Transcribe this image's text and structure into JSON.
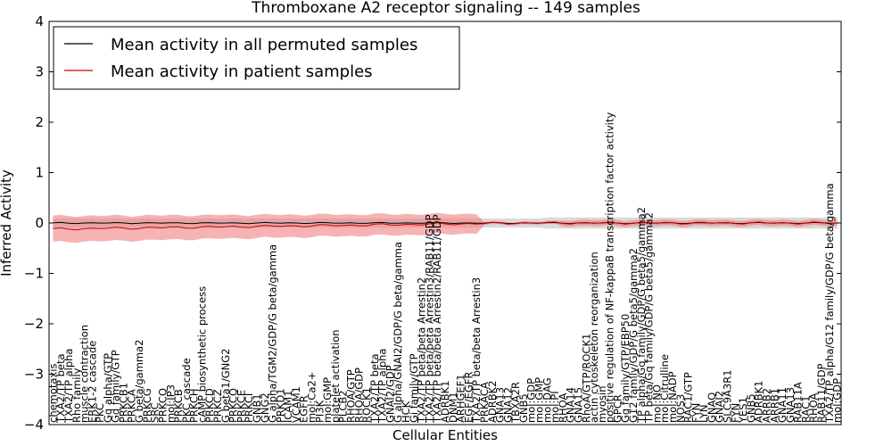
{
  "chart_data": {
    "type": "line",
    "title": "Thromboxane A2 receptor signaling -- 149 samples",
    "xlabel": "Cellular Entities",
    "ylabel": "Inferred Activity",
    "ylim": [
      -4,
      4
    ],
    "yticks": [
      -4,
      -3,
      -2,
      -1,
      0,
      1,
      2,
      3,
      4
    ],
    "legend_position": "top-left",
    "colors": {
      "permuted": "#000000",
      "patient": "#cc0000",
      "patient_fill": "#f08080",
      "permuted_fill": "#bbbbbb"
    },
    "series": [
      {
        "name": "Mean activity in all permuted samples",
        "values_note": "near zero across all entities"
      },
      {
        "name": "Mean activity in patient samples",
        "values_note": "slightly below zero on left side, near zero on right"
      }
    ],
    "categories": [
      "chemotaxis",
      "TXA2/TP beta",
      "TXA2/TP alpha",
      "Rho family",
      "muscle contraction",
      "ERK1-2 cascade",
      "PKC",
      "Gq alpha/GTP",
      "Gq family/GTP",
      "PRKCB1",
      "PRKCA",
      "G beta/gamma2",
      "PRKCG",
      "SRC",
      "PRKCQ",
      "mol:IP3",
      "PRKCB",
      "PKC cascade",
      "PRKCH",
      "cAMP biosynthetic process",
      "PRKCD",
      "PRKCZ",
      "G beta1/GNG2",
      "PRKCQ",
      "PRKCE",
      "PRKCI",
      "GNB1",
      "GNG2",
      "G alpha/TGM2/GDP/G beta/gamma",
      "PRKD1",
      "ICAM1",
      "VCAM1",
      "EGFR",
      "mol:Ca2+",
      "PI3K",
      "mol:GMP",
      "platelet activation",
      "PLCB2",
      "RHOA/GTP",
      "RHOA/GDP",
      "ROCK1",
      "TXA2/TP beta",
      "TXA2/TP alpha",
      "GNAI2/GDP",
      "G alpha/GNAI2/GDP/G beta/gamma",
      "HCK",
      "Gi family/GTP",
      "TXA2/TP beta/beta Arrestin2",
      "TXA2/TP beta/beta Arrestin3/RAB11/GDP",
      "TXA2/TP beta/beta Arrestin2/RAB11/GDP",
      "ADRBK1",
      "DNM1",
      "ARHGEF1",
      "EGF/EGFR",
      "TXA2/TP beta/beta Arrestin3",
      "PRKACA",
      "ADRBK2",
      "GNA13",
      "GNA12",
      "TBXA2R",
      "GNB5",
      "mol:GDP",
      "mol:GMP",
      "mol:DAG",
      "mol:PI",
      "RHOA",
      "GNA14",
      "GNA15",
      "RhoA/GTP/ROCK1",
      "actin cytoskeleton reorganization",
      "myosin",
      "positive regulation of NF-kappaB transcription factor activity",
      "GPCR",
      "Gq family/GTP/EBP50",
      "G12 family/GDP/G beta5/gamma2",
      "TP alpha/Gq family/GDP/G beta5/gamma2",
      "TP beta/Gq family/GDP/G beta5/gamma2",
      "mol:NO",
      "mol:Citrulline",
      "mol:NADP",
      "NOS3",
      "RAC1/GTP",
      "FYN",
      "LYN",
      "GNAQ",
      "GNAI2",
      "SLC9A3R1",
      "FYN",
      "YES1",
      "GNB5",
      "ADRBK1",
      "ARRB2",
      "ARRB1",
      "GNA11",
      "GNA13",
      "RAB11A",
      "RAC1",
      "RHOA",
      "RAB11/GDP",
      "TXA2/TP alpha/G12 family/GDP/G beta/gamma",
      "mol:GDP"
    ]
  }
}
